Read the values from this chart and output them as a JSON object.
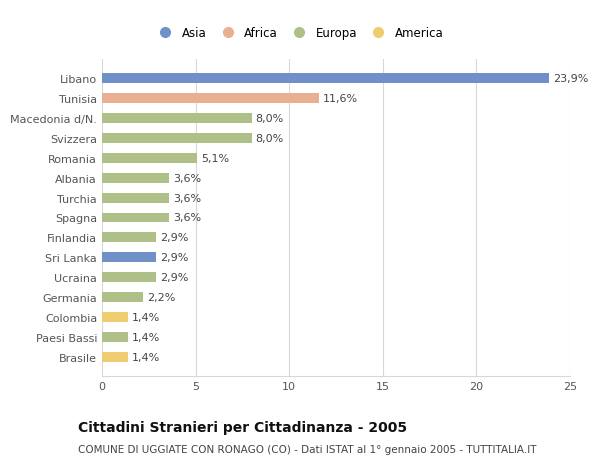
{
  "categories": [
    "Brasile",
    "Paesi Bassi",
    "Colombia",
    "Germania",
    "Ucraina",
    "Sri Lanka",
    "Finlandia",
    "Spagna",
    "Turchia",
    "Albania",
    "Romania",
    "Svizzera",
    "Macedonia d/N.",
    "Tunisia",
    "Libano"
  ],
  "values": [
    1.4,
    1.4,
    1.4,
    2.2,
    2.9,
    2.9,
    2.9,
    3.6,
    3.6,
    3.6,
    5.1,
    8.0,
    8.0,
    11.6,
    23.9
  ],
  "continents": [
    "America",
    "Europa",
    "America",
    "Europa",
    "Europa",
    "Asia",
    "Europa",
    "Europa",
    "Europa",
    "Europa",
    "Europa",
    "Europa",
    "Europa",
    "Africa",
    "Asia"
  ],
  "continent_colors": {
    "Asia": "#7090c8",
    "Africa": "#e8b090",
    "Europa": "#aec088",
    "America": "#f0cc70"
  },
  "label_values": [
    "1,4%",
    "1,4%",
    "1,4%",
    "2,2%",
    "2,9%",
    "2,9%",
    "2,9%",
    "3,6%",
    "3,6%",
    "3,6%",
    "5,1%",
    "8,0%",
    "8,0%",
    "11,6%",
    "23,9%"
  ],
  "xlim": [
    0,
    25
  ],
  "xticks": [
    0,
    5,
    10,
    15,
    20,
    25
  ],
  "title": "Cittadini Stranieri per Cittadinanza - 2005",
  "subtitle": "COMUNE DI UGGIATE CON RONAGO (CO) - Dati ISTAT al 1° gennaio 2005 - TUTTITALIA.IT",
  "legend_order": [
    "Asia",
    "Africa",
    "Europa",
    "America"
  ],
  "background_color": "#ffffff",
  "grid_color": "#d8d8d8",
  "bar_height": 0.5,
  "title_fontsize": 10,
  "subtitle_fontsize": 7.5,
  "tick_fontsize": 8,
  "label_fontsize": 8
}
